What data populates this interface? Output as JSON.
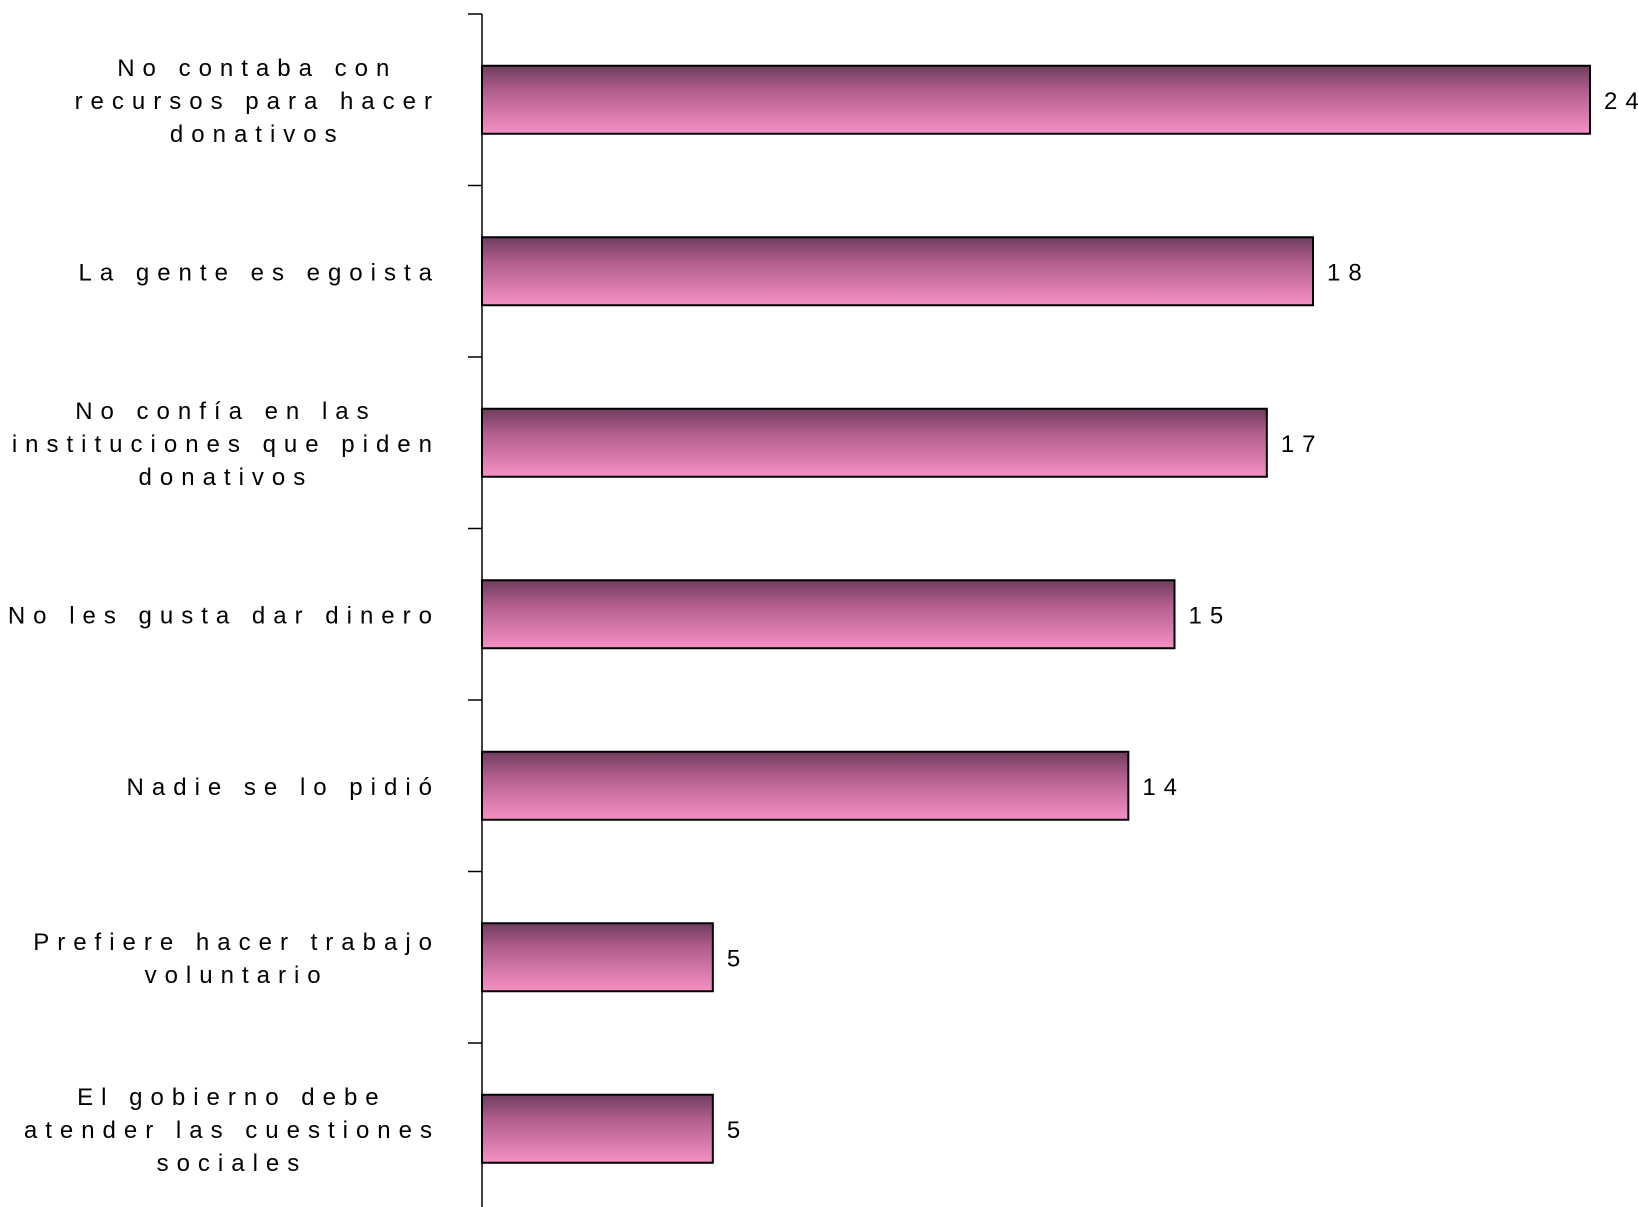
{
  "chart_data": {
    "type": "bar",
    "orientation": "horizontal",
    "categories": [
      "No contaba con recursos para hacer donativos",
      "La gente es egoista",
      "No confía en las instituciones que piden donativos",
      "No les gusta dar dinero",
      "Nadie se lo pidió",
      "Prefiere hacer trabajo voluntario",
      "El gobierno debe atender las cuestiones sociales"
    ],
    "category_lines": [
      [
        "No contaba con",
        "recursos para hacer",
        "donativos"
      ],
      [
        "La gente es egoista"
      ],
      [
        "No confía en las",
        "instituciones que piden",
        "donativos"
      ],
      [
        "No les gusta dar dinero"
      ],
      [
        "Nadie se lo pidió"
      ],
      [
        "Prefiere hacer trabajo",
        "voluntario"
      ],
      [
        "El gobierno debe",
        "atender las cuestiones",
        "sociales"
      ]
    ],
    "values": [
      24,
      18,
      17,
      15,
      14,
      5,
      5
    ],
    "value_labels": [
      "24",
      "18",
      "17",
      "15",
      "14",
      "5",
      "5"
    ],
    "xlim": [
      0,
      24
    ],
    "grid": false,
    "legend": "none",
    "colors": {
      "bar_top": "#6e3d5c",
      "bar_bottom": "#f590c4",
      "bar_border": "#000000",
      "axis": "#000000"
    }
  }
}
